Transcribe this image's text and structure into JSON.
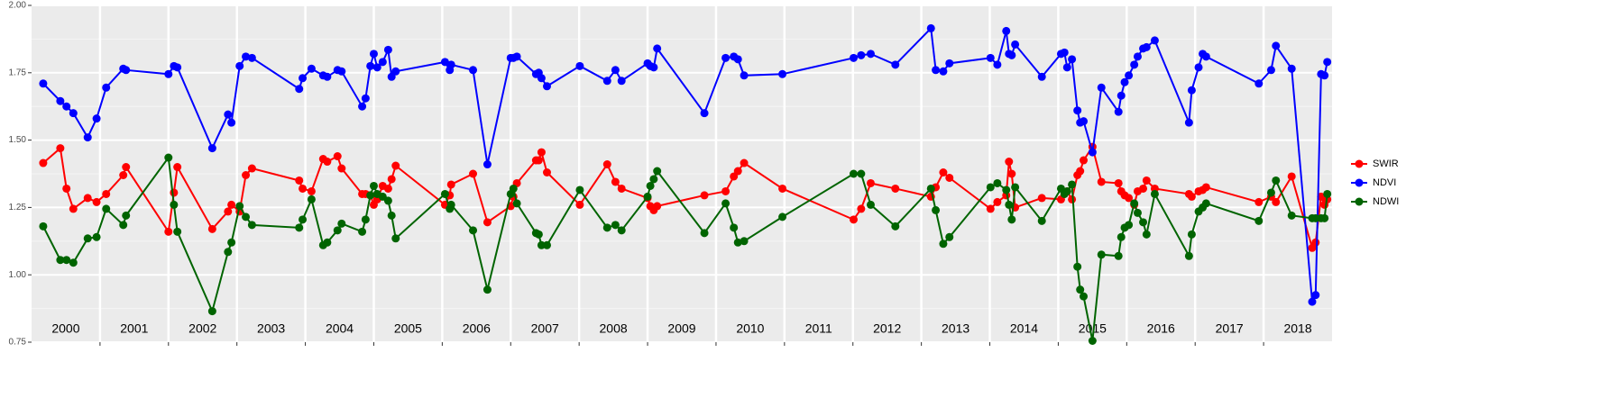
{
  "chart_data": {
    "type": "line",
    "x": [
      2000.17,
      2000.42,
      2000.51,
      2000.61,
      2000.82,
      2000.95,
      2001.09,
      2001.34,
      2001.38,
      2002.0,
      2002.08,
      2002.13,
      2002.64,
      2002.87,
      2002.92,
      2003.04,
      2003.13,
      2003.22,
      2003.91,
      2003.96,
      2004.09,
      2004.26,
      2004.32,
      2004.47,
      2004.53,
      2004.83,
      2004.88,
      2004.95,
      2005.0,
      2005.05,
      2005.13,
      2005.21,
      2005.26,
      2005.32,
      2006.04,
      2006.11,
      2006.13,
      2006.45,
      2006.66,
      2007.0,
      2007.04,
      2007.09,
      2007.37,
      2007.41,
      2007.45,
      2007.53,
      2008.01,
      2008.41,
      2008.53,
      2008.62,
      2009.0,
      2009.04,
      2009.09,
      2009.14,
      2009.83,
      2010.14,
      2010.26,
      2010.32,
      2010.41,
      2010.97,
      2012.01,
      2012.12,
      2012.26,
      2012.62,
      2013.14,
      2013.21,
      2013.32,
      2013.41,
      2014.01,
      2014.11,
      2014.24,
      2014.28,
      2014.32,
      2014.37,
      2014.76,
      2015.04,
      2015.09,
      2015.13,
      2015.2,
      2015.28,
      2015.32,
      2015.37,
      2015.5,
      2015.63,
      2015.88,
      2015.92,
      2015.97,
      2016.03,
      2016.11,
      2016.16,
      2016.24,
      2016.29,
      2016.41,
      2016.91,
      2016.95,
      2017.05,
      2017.11,
      2017.16,
      2017.93,
      2018.11,
      2018.18,
      2018.41,
      2018.71,
      2018.76,
      2018.84,
      2018.89,
      2018.93
    ],
    "series": [
      {
        "name": "SWIR",
        "color": "#ff0000",
        "values": [
          1.415,
          1.47,
          1.32,
          1.245,
          1.285,
          1.27,
          1.3,
          1.37,
          1.4,
          1.16,
          1.305,
          1.4,
          1.17,
          1.235,
          1.26,
          1.235,
          1.37,
          1.395,
          1.35,
          1.32,
          1.31,
          1.43,
          1.42,
          1.44,
          1.395,
          1.3,
          1.3,
          1.295,
          1.26,
          1.28,
          1.33,
          1.32,
          1.355,
          1.405,
          1.26,
          1.295,
          1.335,
          1.375,
          1.195,
          1.255,
          1.29,
          1.34,
          1.425,
          1.425,
          1.455,
          1.38,
          1.26,
          1.41,
          1.345,
          1.32,
          1.285,
          1.255,
          1.24,
          1.255,
          1.295,
          1.31,
          1.365,
          1.385,
          1.415,
          1.32,
          1.205,
          1.245,
          1.34,
          1.32,
          1.29,
          1.325,
          1.38,
          1.36,
          1.245,
          1.27,
          1.295,
          1.42,
          1.375,
          1.25,
          1.285,
          1.28,
          1.3,
          1.31,
          1.28,
          1.37,
          1.385,
          1.425,
          1.475,
          1.345,
          1.34,
          1.31,
          1.295,
          1.285,
          1.26,
          1.31,
          1.32,
          1.35,
          1.32,
          1.3,
          1.29,
          1.31,
          1.315,
          1.325,
          1.27,
          1.29,
          1.27,
          1.365,
          1.1,
          1.12,
          1.29,
          1.26,
          1.28
        ]
      },
      {
        "name": "NDVI",
        "color": "#0000ff",
        "values": [
          1.71,
          1.645,
          1.625,
          1.6,
          1.51,
          1.58,
          1.695,
          1.765,
          1.76,
          1.745,
          1.775,
          1.77,
          1.47,
          1.595,
          1.565,
          1.775,
          1.81,
          1.805,
          1.69,
          1.73,
          1.765,
          1.74,
          1.735,
          1.76,
          1.755,
          1.625,
          1.655,
          1.775,
          1.82,
          1.77,
          1.79,
          1.835,
          1.735,
          1.755,
          1.79,
          1.76,
          1.78,
          1.76,
          1.41,
          1.805,
          1.805,
          1.81,
          1.745,
          1.75,
          1.73,
          1.7,
          1.775,
          1.72,
          1.76,
          1.72,
          1.785,
          1.775,
          1.77,
          1.84,
          1.6,
          1.805,
          1.81,
          1.8,
          1.74,
          1.745,
          1.805,
          1.815,
          1.82,
          1.78,
          1.915,
          1.76,
          1.755,
          1.785,
          1.805,
          1.78,
          1.905,
          1.82,
          1.815,
          1.855,
          1.735,
          1.82,
          1.825,
          1.77,
          1.8,
          1.61,
          1.565,
          1.57,
          1.455,
          1.695,
          1.605,
          1.665,
          1.715,
          1.74,
          1.78,
          1.81,
          1.84,
          1.845,
          1.87,
          1.565,
          1.685,
          1.77,
          1.82,
          1.81,
          1.71,
          1.76,
          1.85,
          1.765,
          0.9,
          0.925,
          1.745,
          1.74,
          1.79
        ]
      },
      {
        "name": "NDWI",
        "color": "#006400",
        "values": [
          1.18,
          1.055,
          1.055,
          1.045,
          1.135,
          1.14,
          1.245,
          1.185,
          1.22,
          1.435,
          1.26,
          1.16,
          0.865,
          1.085,
          1.12,
          1.255,
          1.215,
          1.185,
          1.175,
          1.205,
          1.28,
          1.11,
          1.12,
          1.165,
          1.19,
          1.16,
          1.205,
          1.295,
          1.33,
          1.3,
          1.29,
          1.275,
          1.22,
          1.135,
          1.3,
          1.245,
          1.26,
          1.165,
          0.945,
          1.3,
          1.32,
          1.265,
          1.155,
          1.15,
          1.11,
          1.11,
          1.315,
          1.175,
          1.185,
          1.165,
          1.29,
          1.33,
          1.355,
          1.385,
          1.155,
          1.265,
          1.175,
          1.12,
          1.125,
          1.215,
          1.375,
          1.375,
          1.26,
          1.18,
          1.32,
          1.24,
          1.115,
          1.14,
          1.325,
          1.34,
          1.315,
          1.26,
          1.205,
          1.325,
          1.2,
          1.32,
          1.3,
          1.31,
          1.335,
          1.03,
          0.945,
          0.92,
          0.755,
          1.075,
          1.07,
          1.14,
          1.175,
          1.185,
          1.265,
          1.23,
          1.195,
          1.15,
          1.3,
          1.07,
          1.15,
          1.235,
          1.25,
          1.265,
          1.2,
          1.305,
          1.35,
          1.22,
          1.21,
          1.21,
          1.21,
          1.21,
          1.3
        ]
      }
    ],
    "xlim": [
      2000,
      2019
    ],
    "xticks": [
      2001,
      2002,
      2003,
      2004,
      2005,
      2006,
      2007,
      2008,
      2009,
      2010,
      2011,
      2012,
      2013,
      2014,
      2015,
      2016,
      2017,
      2018
    ],
    "year_labels": [
      "2000",
      "2001",
      "2002",
      "2003",
      "2004",
      "2005",
      "2006",
      "2007",
      "2008",
      "2009",
      "2010",
      "2011",
      "2012",
      "2013",
      "2014",
      "2015",
      "2016",
      "2017",
      "2018"
    ],
    "ylim": [
      0.75,
      2.0
    ],
    "yticks": [
      0.75,
      {
        "value": 1.0,
        "label": "1.00"
      },
      1.25,
      {
        "value": 1.5,
        "label": "1.50"
      },
      1.75,
      {
        "value": 2.0,
        "label": "2.00"
      }
    ],
    "grid": true,
    "legend": "right"
  }
}
